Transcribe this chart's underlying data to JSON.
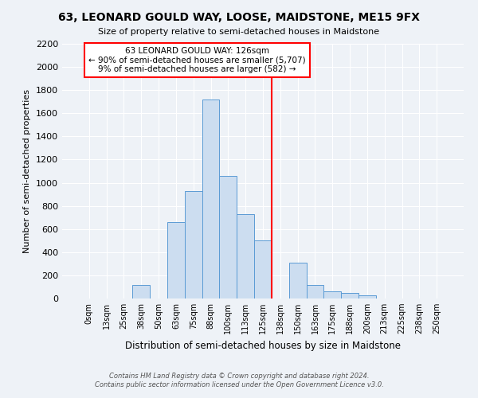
{
  "title1": "63, LEONARD GOULD WAY, LOOSE, MAIDSTONE, ME15 9FX",
  "title2": "Size of property relative to semi-detached houses in Maidstone",
  "xlabel": "Distribution of semi-detached houses by size in Maidstone",
  "ylabel": "Number of semi-detached properties",
  "bar_labels": [
    "0sqm",
    "13sqm",
    "25sqm",
    "38sqm",
    "50sqm",
    "63sqm",
    "75sqm",
    "88sqm",
    "100sqm",
    "113sqm",
    "125sqm",
    "138sqm",
    "150sqm",
    "163sqm",
    "175sqm",
    "188sqm",
    "200sqm",
    "213sqm",
    "225sqm",
    "238sqm",
    "250sqm"
  ],
  "bar_values": [
    0,
    0,
    0,
    120,
    0,
    660,
    930,
    1720,
    1060,
    730,
    500,
    0,
    310,
    120,
    65,
    45,
    30,
    0,
    0,
    0,
    0
  ],
  "bar_color": "#ccddf0",
  "bar_edge_color": "#5b9bd5",
  "vline_color": "red",
  "vline_x_idx": 10.5,
  "annotation_title": "63 LEONARD GOULD WAY: 126sqm",
  "annotation_line1": "← 90% of semi-detached houses are smaller (5,707)",
  "annotation_line2": "9% of semi-detached houses are larger (582) →",
  "ylim_max": 2200,
  "ytick_step": 200,
  "footer1": "Contains HM Land Registry data © Crown copyright and database right 2024.",
  "footer2": "Contains public sector information licensed under the Open Government Licence v3.0.",
  "bg_color": "#eef2f7",
  "grid_color": "#ffffff"
}
